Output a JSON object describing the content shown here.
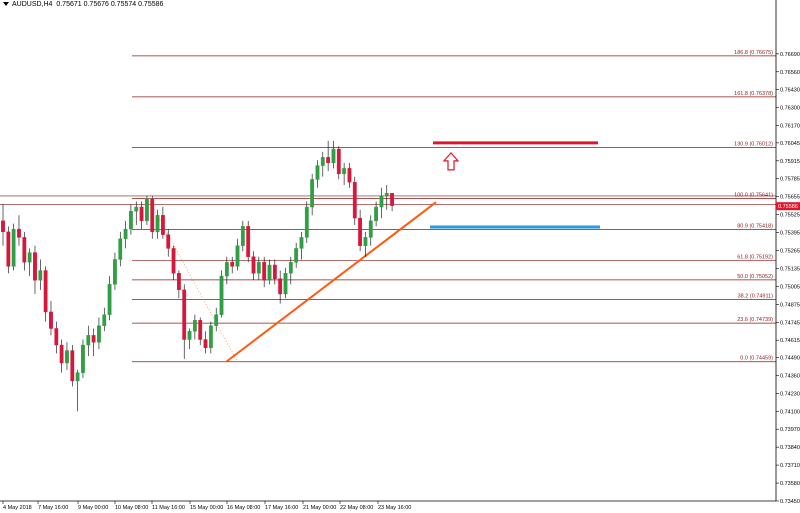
{
  "header": {
    "symbol": "AUDUSD,H4",
    "ohlc": "0.75671 0.75676 0.75574 0.75586"
  },
  "colors": {
    "bull": "#2f9e44",
    "bear": "#d6163a",
    "fib": "#8b1a1a",
    "trendline": "#ff5a0f",
    "red_level": "#e0162b",
    "blue_level": "#2b9be0",
    "arrow": "#e0162b",
    "price_tag": "#e0162b"
  },
  "chart_data": {
    "type": "candlestick",
    "ylim": [
      0.7345,
      0.7708
    ],
    "y_ticks": [
      "0.76690",
      "0.76560",
      "0.76430",
      "0.76300",
      "0.76170",
      "0.76045",
      "0.75915",
      "0.75785",
      "0.75655",
      "0.75525",
      "0.75395",
      "0.75265",
      "0.75135",
      "0.75005",
      "0.74875",
      "0.74745",
      "0.74615",
      "0.74490",
      "0.74360",
      "0.74230",
      "0.74100",
      "0.73970",
      "0.73840",
      "0.73710",
      "0.73580",
      "0.73450"
    ],
    "x_labels": [
      "4 May 2018",
      "7 May 16:00",
      "9 May 00:00",
      "10 May 08:00",
      "11 May 16:00",
      "15 May 00:00",
      "16 May 08:00",
      "17 May 16:00",
      "21 May 00:00",
      "22 May 08:00",
      "23 May 16:00"
    ],
    "current_price": "0.75586",
    "candles": [
      [
        0.7548,
        0.756,
        0.753,
        0.754
      ],
      [
        0.754,
        0.7544,
        0.751,
        0.7515
      ],
      [
        0.7515,
        0.7546,
        0.7512,
        0.7542
      ],
      [
        0.7542,
        0.7552,
        0.753,
        0.7536
      ],
      [
        0.7536,
        0.754,
        0.7512,
        0.7518
      ],
      [
        0.7518,
        0.7528,
        0.7508,
        0.7525
      ],
      [
        0.7525,
        0.753,
        0.7495,
        0.7505
      ],
      [
        0.7505,
        0.752,
        0.7498,
        0.7512
      ],
      [
        0.7512,
        0.7515,
        0.7475,
        0.7482
      ],
      [
        0.7482,
        0.749,
        0.7465,
        0.747
      ],
      [
        0.747,
        0.7475,
        0.7452,
        0.7458
      ],
      [
        0.7458,
        0.7462,
        0.7438,
        0.7445
      ],
      [
        0.7445,
        0.746,
        0.744,
        0.7454
      ],
      [
        0.7454,
        0.7458,
        0.7428,
        0.7432
      ],
      [
        0.7432,
        0.744,
        0.741,
        0.7438
      ],
      [
        0.7438,
        0.7462,
        0.7434,
        0.7458
      ],
      [
        0.7458,
        0.7472,
        0.745,
        0.7465
      ],
      [
        0.7465,
        0.747,
        0.745,
        0.746
      ],
      [
        0.746,
        0.7478,
        0.7455,
        0.7472
      ],
      [
        0.7472,
        0.7485,
        0.7468,
        0.748
      ],
      [
        0.748,
        0.7508,
        0.7476,
        0.7502
      ],
      [
        0.7502,
        0.7525,
        0.7498,
        0.752
      ],
      [
        0.752,
        0.754,
        0.7515,
        0.7535
      ],
      [
        0.7535,
        0.7548,
        0.7528,
        0.7542
      ],
      [
        0.7542,
        0.756,
        0.7538,
        0.7555
      ],
      [
        0.7555,
        0.7562,
        0.7545,
        0.7558
      ],
      [
        0.7558,
        0.7562,
        0.7542,
        0.7548
      ],
      [
        0.7548,
        0.7566,
        0.7545,
        0.7564
      ],
      [
        0.7564,
        0.7566,
        0.7535,
        0.754
      ],
      [
        0.754,
        0.7556,
        0.7535,
        0.7552
      ],
      [
        0.7552,
        0.7558,
        0.7535,
        0.7538
      ],
      [
        0.7538,
        0.7542,
        0.7522,
        0.7528
      ],
      [
        0.7528,
        0.753,
        0.7505,
        0.751
      ],
      [
        0.751,
        0.7512,
        0.7492,
        0.7498
      ],
      [
        0.7498,
        0.7502,
        0.7448,
        0.7462
      ],
      [
        0.7462,
        0.747,
        0.7455,
        0.7468
      ],
      [
        0.7468,
        0.748,
        0.7462,
        0.7476
      ],
      [
        0.7476,
        0.7478,
        0.7458,
        0.7462
      ],
      [
        0.7462,
        0.7468,
        0.7452,
        0.7456
      ],
      [
        0.7456,
        0.7475,
        0.7452,
        0.7472
      ],
      [
        0.7472,
        0.7485,
        0.7468,
        0.748
      ],
      [
        0.748,
        0.7512,
        0.7478,
        0.7508
      ],
      [
        0.7508,
        0.7522,
        0.7502,
        0.7518
      ],
      [
        0.7518,
        0.7522,
        0.751,
        0.7515
      ],
      [
        0.7515,
        0.7535,
        0.7512,
        0.753
      ],
      [
        0.753,
        0.7548,
        0.7526,
        0.7544
      ],
      [
        0.7544,
        0.7548,
        0.7518,
        0.7522
      ],
      [
        0.7522,
        0.7526,
        0.7505,
        0.751
      ],
      [
        0.751,
        0.7522,
        0.7505,
        0.7518
      ],
      [
        0.7518,
        0.7522,
        0.75,
        0.7505
      ],
      [
        0.7505,
        0.752,
        0.7502,
        0.7516
      ],
      [
        0.7516,
        0.752,
        0.7502,
        0.7506
      ],
      [
        0.7506,
        0.7512,
        0.7488,
        0.7495
      ],
      [
        0.7495,
        0.7514,
        0.7492,
        0.751
      ],
      [
        0.751,
        0.7522,
        0.7502,
        0.7518
      ],
      [
        0.7518,
        0.7532,
        0.7514,
        0.7528
      ],
      [
        0.7528,
        0.754,
        0.752,
        0.7536
      ],
      [
        0.7536,
        0.7562,
        0.7532,
        0.7558
      ],
      [
        0.7558,
        0.7582,
        0.7552,
        0.7578
      ],
      [
        0.7578,
        0.7592,
        0.7572,
        0.7588
      ],
      [
        0.7588,
        0.7598,
        0.758,
        0.7594
      ],
      [
        0.7594,
        0.7606,
        0.7584,
        0.759
      ],
      [
        0.759,
        0.7606,
        0.7586,
        0.76
      ],
      [
        0.76,
        0.7602,
        0.7578,
        0.7582
      ],
      [
        0.7582,
        0.759,
        0.7574,
        0.7586
      ],
      [
        0.7586,
        0.759,
        0.7572,
        0.7576
      ],
      [
        0.7576,
        0.758,
        0.7545,
        0.755
      ],
      [
        0.755,
        0.7556,
        0.7526,
        0.753
      ],
      [
        0.753,
        0.754,
        0.7522,
        0.7536
      ],
      [
        0.7536,
        0.7552,
        0.753,
        0.7548
      ],
      [
        0.7548,
        0.7562,
        0.7544,
        0.7558
      ],
      [
        0.7558,
        0.7572,
        0.755,
        0.7566
      ],
      [
        0.7566,
        0.7574,
        0.7556,
        0.7568
      ],
      [
        0.7568,
        0.7568,
        0.7555,
        0.7559
      ]
    ],
    "fib_levels": [
      {
        "label": "0.0 (0.74459)",
        "value": 0.74459
      },
      {
        "label": "23.6 (0.74739)",
        "value": 0.74739
      },
      {
        "label": "38.2 (0.74911)",
        "value": 0.74911
      },
      {
        "label": "50.0 (0.75052)",
        "value": 0.75052
      },
      {
        "label": "61.8 (0.75192)",
        "value": 0.75192
      },
      {
        "label": "80.9 (0.75418)",
        "value": 0.75418
      },
      {
        "label": "100.0 (0.75641)",
        "value": 0.75641
      },
      {
        "label": "130.9 (0.76012)",
        "value": 0.76012
      },
      {
        "label": "161.8 (0.76378)",
        "value": 0.76378
      },
      {
        "label": "186.8 (0.76675)",
        "value": 0.76675
      }
    ],
    "trendline": {
      "from": [
        34,
        0.74459
      ],
      "to": [
        79,
        0.75615
      ]
    },
    "resistance_level": {
      "value": 0.76045,
      "from_index": 78,
      "to_index": 112
    },
    "support_level": {
      "value": 0.75435,
      "from_index": 77,
      "to_index": 112
    },
    "arrow": {
      "index": 82,
      "value": 0.759,
      "direction": "up"
    }
  }
}
